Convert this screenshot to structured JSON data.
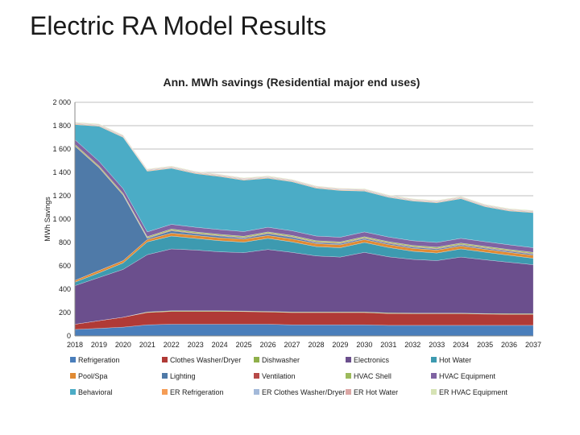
{
  "slide": {
    "title": "Electric RA Model Results"
  },
  "chart_data": {
    "type": "area",
    "stacked": true,
    "title": "Ann. MWh savings (Residential major end uses)",
    "xlabel": "",
    "ylabel": "MWh Savings",
    "ylim": [
      0,
      2000
    ],
    "yticks": [
      0,
      200,
      400,
      600,
      800,
      1000,
      1200,
      1400,
      1600,
      1800,
      2000
    ],
    "ytick_labels": [
      "0",
      "200",
      "400",
      "600",
      "800",
      "1 000",
      "1 200",
      "1 400",
      "1 600",
      "1 800",
      "2 000"
    ],
    "grid": true,
    "legend_position": "bottom",
    "x": [
      "2018",
      "2019",
      "2020",
      "2021",
      "2022",
      "2023",
      "2024",
      "2025",
      "2026",
      "2027",
      "2028",
      "2029",
      "2030",
      "2031",
      "2032",
      "2033",
      "2034",
      "2035",
      "2036",
      "2037"
    ],
    "series": [
      {
        "name": "Refrigeration",
        "color": "#4a7ebb",
        "values": [
          55,
          65,
          75,
          95,
          100,
          100,
          100,
          100,
          100,
          95,
          95,
          95,
          95,
          90,
          90,
          90,
          90,
          90,
          90,
          90
        ]
      },
      {
        "name": "Clothes Washer/Dryer",
        "color": "#b03a36",
        "values": [
          45,
          65,
          85,
          105,
          110,
          110,
          110,
          108,
          105,
          105,
          105,
          105,
          105,
          102,
          100,
          100,
          100,
          97,
          95,
          95
        ]
      },
      {
        "name": "Dishwasher",
        "color": "#8fb04a",
        "values": [
          0,
          0,
          0,
          5,
          5,
          5,
          5,
          5,
          5,
          5,
          5,
          5,
          5,
          5,
          5,
          5,
          5,
          5,
          5,
          5
        ]
      },
      {
        "name": "Electronics",
        "color": "#6b4f8d",
        "values": [
          330,
          370,
          410,
          490,
          530,
          520,
          505,
          500,
          530,
          510,
          480,
          470,
          510,
          480,
          460,
          450,
          480,
          460,
          440,
          420
        ]
      },
      {
        "name": "Hot Water",
        "color": "#3d9ab0",
        "values": [
          30,
          40,
          55,
          110,
          110,
          100,
          95,
          90,
          95,
          90,
          80,
          80,
          85,
          80,
          70,
          65,
          70,
          65,
          60,
          55
        ]
      },
      {
        "name": "Pool/Spa",
        "color": "#e08a33",
        "values": [
          15,
          20,
          20,
          20,
          25,
          25,
          25,
          25,
          25,
          25,
          25,
          25,
          25,
          25,
          25,
          25,
          25,
          25,
          25,
          25
        ]
      },
      {
        "name": "Lighting",
        "color": "#4f7aa8",
        "values": [
          1150,
          880,
          560,
          10,
          20,
          15,
          15,
          10,
          15,
          15,
          10,
          10,
          10,
          10,
          10,
          10,
          10,
          10,
          10,
          10
        ]
      },
      {
        "name": "Ventilation",
        "color": "#b74a48",
        "values": [
          5,
          5,
          5,
          5,
          5,
          5,
          5,
          5,
          5,
          5,
          5,
          5,
          5,
          5,
          5,
          5,
          5,
          5,
          5,
          5
        ]
      },
      {
        "name": "HVAC Shell",
        "color": "#9cba5c",
        "values": [
          10,
          10,
          10,
          10,
          10,
          10,
          10,
          10,
          10,
          10,
          10,
          10,
          10,
          10,
          10,
          10,
          10,
          10,
          10,
          10
        ]
      },
      {
        "name": "HVAC Equipment",
        "color": "#7f63a2",
        "values": [
          40,
          40,
          40,
          40,
          40,
          40,
          40,
          40,
          40,
          40,
          40,
          40,
          40,
          40,
          40,
          40,
          40,
          40,
          40,
          40
        ]
      },
      {
        "name": "Behavioral",
        "color": "#4bacc6",
        "values": [
          130,
          300,
          440,
          520,
          480,
          460,
          455,
          440,
          420,
          420,
          410,
          400,
          350,
          340,
          340,
          340,
          340,
          300,
          290,
          300
        ]
      },
      {
        "name": "ER Refrigeration",
        "color": "#f59d56",
        "values": [
          5,
          5,
          5,
          5,
          5,
          5,
          5,
          5,
          5,
          5,
          5,
          5,
          5,
          5,
          5,
          5,
          5,
          5,
          5,
          5
        ]
      },
      {
        "name": "ER Clothes Washer/Dryer",
        "color": "#a3b9d9",
        "values": [
          5,
          5,
          5,
          5,
          5,
          5,
          5,
          5,
          5,
          5,
          5,
          5,
          5,
          5,
          5,
          5,
          5,
          5,
          5,
          5
        ]
      },
      {
        "name": "ER Hot Water",
        "color": "#dba6a4",
        "values": [
          5,
          5,
          5,
          5,
          5,
          5,
          5,
          5,
          5,
          5,
          5,
          5,
          5,
          5,
          5,
          5,
          5,
          5,
          5,
          5
        ]
      },
      {
        "name": "ER HVAC Equipment",
        "color": "#d6e3b5",
        "values": [
          5,
          5,
          5,
          5,
          5,
          5,
          5,
          5,
          5,
          5,
          5,
          5,
          5,
          5,
          5,
          5,
          5,
          5,
          5,
          5
        ]
      }
    ]
  }
}
